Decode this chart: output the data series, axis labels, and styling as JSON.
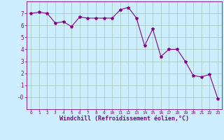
{
  "x": [
    0,
    1,
    2,
    3,
    4,
    5,
    6,
    7,
    8,
    9,
    10,
    11,
    12,
    13,
    14,
    15,
    16,
    17,
    18,
    19,
    20,
    21,
    22,
    23
  ],
  "y": [
    7.0,
    7.1,
    7.0,
    6.2,
    6.3,
    5.9,
    6.7,
    6.6,
    6.6,
    6.6,
    6.6,
    7.3,
    7.5,
    6.6,
    4.3,
    5.7,
    3.4,
    4.0,
    4.0,
    3.0,
    1.8,
    1.7,
    1.9,
    -0.1
  ],
  "line_color": "#880088",
  "marker": "*",
  "marker_size": 3,
  "bg_color": "#cceeff",
  "grid_color": "#aaccbb",
  "xlabel": "Windchill (Refroidissement éolien,°C)",
  "tick_color": "#880088",
  "xlim": [
    -0.5,
    23.5
  ],
  "ylim": [
    -1.0,
    8.0
  ],
  "yticks": [
    0,
    1,
    2,
    3,
    4,
    5,
    6,
    7
  ],
  "ytick_labels": [
    "-0",
    "1",
    "2",
    "3",
    "4",
    "5",
    "6",
    "7"
  ],
  "xticks": [
    0,
    1,
    2,
    3,
    4,
    5,
    6,
    7,
    8,
    9,
    10,
    11,
    12,
    13,
    14,
    15,
    16,
    17,
    18,
    19,
    20,
    21,
    22,
    23
  ]
}
